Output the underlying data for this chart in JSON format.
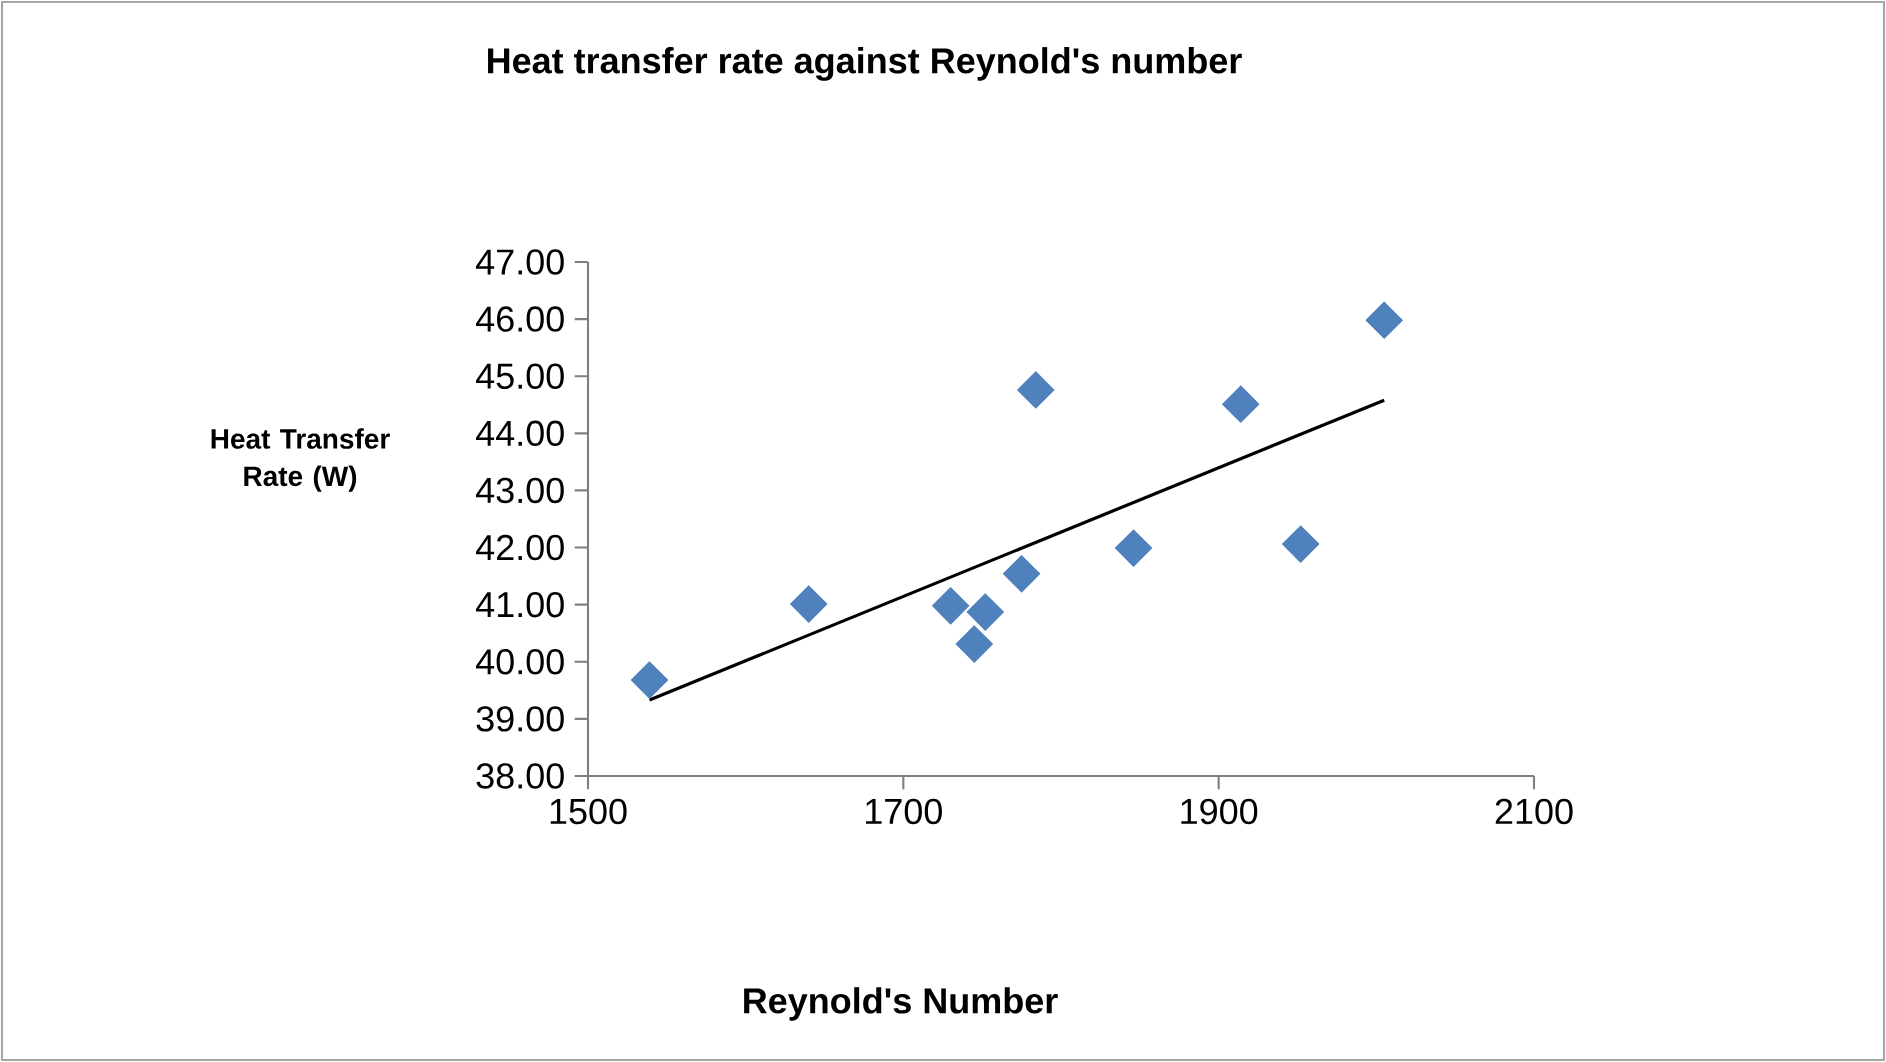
{
  "chart_data": {
    "type": "scatter",
    "title": "Heat transfer rate against Reynold's number",
    "xlabel": "Reynold's Number",
    "ylabel": "Heat Transfer Rate (W)",
    "xlim": [
      1500,
      2100
    ],
    "xticks": [
      1500,
      1700,
      1900,
      2100
    ],
    "ylim": [
      38,
      47
    ],
    "yticks": [
      {
        "value": 38,
        "label": "38.00"
      },
      {
        "value": 39,
        "label": "39.00"
      },
      {
        "value": 40,
        "label": "40.00"
      },
      {
        "value": 41,
        "label": "41.00"
      },
      {
        "value": 42,
        "label": "42.00"
      },
      {
        "value": 43,
        "label": "43.00"
      },
      {
        "value": 44,
        "label": "44.00"
      },
      {
        "value": 45,
        "label": "45.00"
      },
      {
        "value": 46,
        "label": "46.00"
      },
      {
        "value": 47,
        "label": "47.00"
      }
    ],
    "grid": false,
    "series": [
      {
        "color": "#4f81bd",
        "marker": "diamond",
        "x": [
          1539,
          1640,
          1730,
          1745,
          1752,
          1775,
          1784,
          1846,
          1914,
          1952,
          2005
        ],
        "values": [
          39.68,
          41.01,
          40.98,
          40.31,
          40.87,
          41.54,
          44.76,
          41.99,
          44.51,
          42.06,
          45.98
        ]
      },
      {
        "type": "line",
        "color": "#000000",
        "marker": "none",
        "line_style": "solid",
        "x": [
          1539,
          2005
        ],
        "values": [
          39.33,
          44.58
        ]
      }
    ]
  }
}
